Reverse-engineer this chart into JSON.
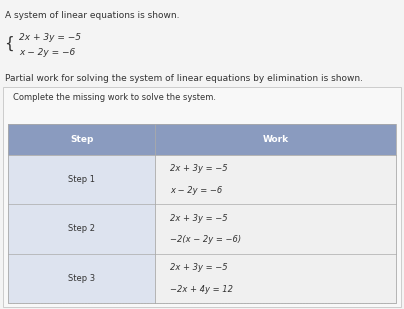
{
  "title_line1": "A system of linear equations is shown.",
  "system_eq1": "2x + 3y = −5",
  "system_eq2": "x − 2y = −6",
  "partial_work_text": "Partial work for solving the system of linear equations by elimination is shown.",
  "box_instruction": "Complete the missing work to solve the system.",
  "col1_header": "Step",
  "col2_header": "Work",
  "rows": [
    {
      "step": "Step 1",
      "work_lines": [
        "2x + 3y = −5",
        "x − 2y = −6"
      ]
    },
    {
      "step": "Step 2",
      "work_lines": [
        "2x + 3y = −5",
        "−2(x − 2y = −6)"
      ]
    },
    {
      "step": "Step 3",
      "work_lines": [
        "2x + 3y = −5",
        "−2x + 4y = 12"
      ]
    }
  ],
  "header_bg": "#8a9bbf",
  "col1_bg": "#dde3ef",
  "col2_bg": "#f0f0f0",
  "border_color": "#aaaaaa",
  "text_color": "#333333",
  "title_fontsize": 6.5,
  "header_fontsize": 6.5,
  "cell_fontsize": 6.0,
  "bg_color": "#f4f4f4",
  "outer_box_bg": "#f8f8f8",
  "outer_box_border": "#cccccc"
}
